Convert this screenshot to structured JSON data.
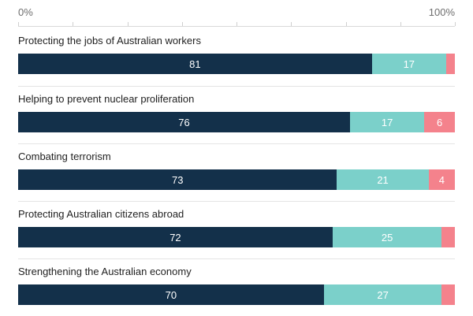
{
  "axis": {
    "left_label": "0%",
    "right_label": "100%",
    "tick_interval": 12.5
  },
  "colors": {
    "primary": "#13304a",
    "secondary": "#7bd0ca",
    "tertiary": "#f4828c"
  },
  "chart_data": {
    "type": "bar",
    "orientation": "horizontal",
    "stacked": true,
    "xlim": [
      0,
      100
    ],
    "grid": "top-axis-ticks-only",
    "legend": "none",
    "title": "",
    "categories": [
      "Protecting the jobs of Australian workers",
      "Helping to prevent nuclear proliferation",
      "Combating terrorism",
      "Protecting Australian citizens abroad",
      "Strengthening the Australian economy"
    ],
    "rows": [
      {
        "category": "Protecting the jobs of Australian workers",
        "values": [
          81,
          17,
          2
        ],
        "show_labels": [
          true,
          true,
          false
        ]
      },
      {
        "category": "Helping to prevent nuclear proliferation",
        "values": [
          76,
          17,
          6
        ],
        "show_labels": [
          true,
          true,
          true
        ]
      },
      {
        "category": "Combating terrorism",
        "values": [
          73,
          21,
          4
        ],
        "show_labels": [
          true,
          true,
          true
        ]
      },
      {
        "category": "Protecting Australian citizens abroad",
        "values": [
          72,
          25,
          3
        ],
        "show_labels": [
          true,
          true,
          false
        ]
      },
      {
        "category": "Strengthening the Australian economy",
        "values": [
          70,
          27,
          3
        ],
        "show_labels": [
          true,
          true,
          false
        ]
      }
    ]
  }
}
